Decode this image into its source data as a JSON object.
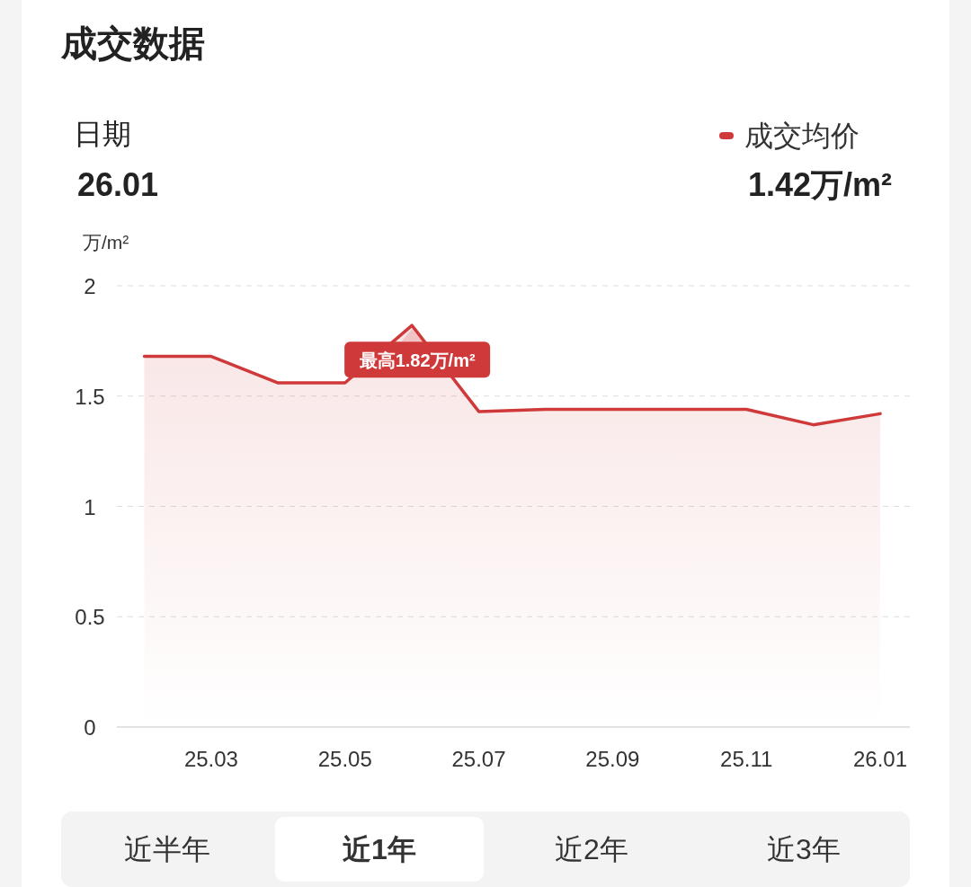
{
  "chart_data": {
    "type": "line",
    "title": "成交数据",
    "ylabel": "万/m²",
    "categories": [
      null,
      "25.03",
      null,
      "25.05",
      null,
      "25.07",
      null,
      "25.09",
      null,
      "25.11",
      null,
      "26.01"
    ],
    "series": [
      {
        "name": "成交均价",
        "color": "#d0393a",
        "values": [
          1.68,
          1.68,
          1.56,
          1.56,
          1.82,
          1.43,
          1.44,
          1.44,
          1.44,
          1.44,
          1.37,
          1.42
        ]
      }
    ],
    "ylim": [
      0,
      2
    ],
    "yticks": [
      0,
      0.5,
      1,
      1.5,
      2
    ],
    "grid": "y",
    "legend": "top right",
    "line_style": "solid",
    "annotations": [
      "最高1.82万/m²",
      "日期",
      "26.01",
      "1.42万/m²",
      "近半年",
      "近1年",
      "近2年",
      "近3年"
    ]
  }
}
